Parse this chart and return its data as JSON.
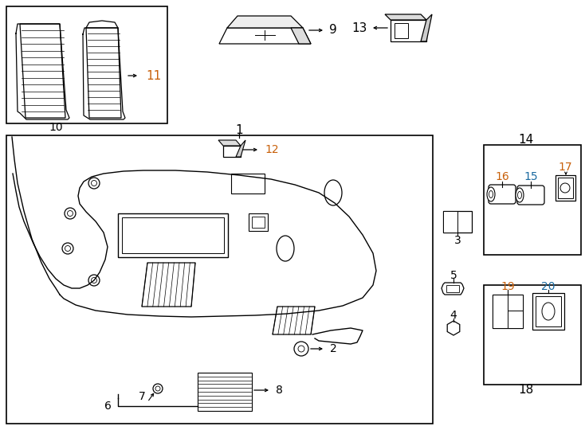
{
  "bg_color": "#ffffff",
  "line_color": "#000000",
  "label_color_black": "#000000",
  "label_color_orange": "#c8600a",
  "label_color_blue": "#1a6aa0",
  "fig_width": 7.34,
  "fig_height": 5.4,
  "dpi": 100
}
